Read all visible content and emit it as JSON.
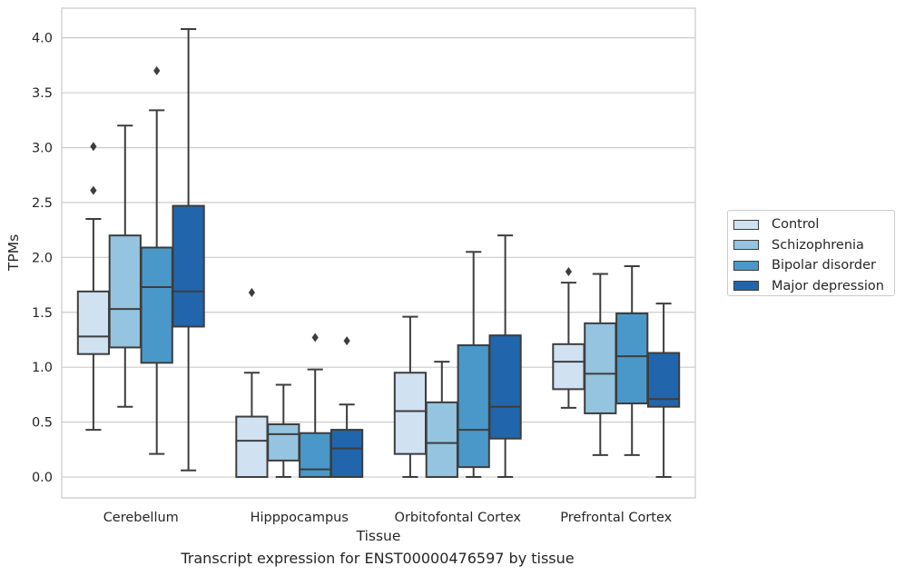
{
  "caption": "Transcript expression for ENST00000476597 by tissue",
  "chart_data": {
    "type": "boxplot",
    "xlabel": "Tissue",
    "ylabel": "TPMs",
    "ylim": [
      -0.19,
      4.27
    ],
    "yticks": [
      "0.0",
      "0.5",
      "1.0",
      "1.5",
      "2.0",
      "2.5",
      "3.0",
      "3.5",
      "4.0"
    ],
    "grid": "horizontal",
    "legend_position": "right",
    "categories": [
      "Cerebellum",
      "Hipppocampus",
      "Orbitofontal Cortex",
      "Prefrontal Cortex"
    ],
    "series": [
      {
        "name": "Control",
        "color": "#d0e1f2",
        "boxes": [
          {
            "whislo": 0.43,
            "q1": 1.12,
            "med": 1.28,
            "q3": 1.69,
            "whishi": 2.35,
            "fliers": [
              2.61,
              3.01
            ]
          },
          {
            "whislo": 0.0,
            "q1": 0.0,
            "med": 0.33,
            "q3": 0.55,
            "whishi": 0.95,
            "fliers": [
              1.68
            ]
          },
          {
            "whislo": 0.0,
            "q1": 0.21,
            "med": 0.6,
            "q3": 0.95,
            "whishi": 1.46,
            "fliers": []
          },
          {
            "whislo": 0.63,
            "q1": 0.8,
            "med": 1.05,
            "q3": 1.21,
            "whishi": 1.77,
            "fliers": [
              1.87
            ]
          }
        ]
      },
      {
        "name": "Schizophrenia",
        "color": "#94c4df",
        "boxes": [
          {
            "whislo": 0.64,
            "q1": 1.18,
            "med": 1.53,
            "q3": 2.2,
            "whishi": 3.2,
            "fliers": []
          },
          {
            "whislo": 0.0,
            "q1": 0.15,
            "med": 0.39,
            "q3": 0.48,
            "whishi": 0.84,
            "fliers": []
          },
          {
            "whislo": 0.0,
            "q1": 0.0,
            "med": 0.31,
            "q3": 0.68,
            "whishi": 1.05,
            "fliers": []
          },
          {
            "whislo": 0.2,
            "q1": 0.58,
            "med": 0.94,
            "q3": 1.4,
            "whishi": 1.85,
            "fliers": []
          }
        ]
      },
      {
        "name": "Bipolar disorder",
        "color": "#4a98c9",
        "boxes": [
          {
            "whislo": 0.21,
            "q1": 1.04,
            "med": 1.73,
            "q3": 2.09,
            "whishi": 3.34,
            "fliers": [
              3.7
            ]
          },
          {
            "whislo": 0.0,
            "q1": 0.0,
            "med": 0.07,
            "q3": 0.4,
            "whishi": 0.98,
            "fliers": [
              1.27
            ]
          },
          {
            "whislo": 0.0,
            "q1": 0.09,
            "med": 0.43,
            "q3": 1.2,
            "whishi": 2.05,
            "fliers": []
          },
          {
            "whislo": 0.2,
            "q1": 0.67,
            "med": 1.1,
            "q3": 1.49,
            "whishi": 1.92,
            "fliers": []
          }
        ]
      },
      {
        "name": "Major depression",
        "color": "#2166ac",
        "boxes": [
          {
            "whislo": 0.06,
            "q1": 1.37,
            "med": 1.69,
            "q3": 2.47,
            "whishi": 4.08,
            "fliers": []
          },
          {
            "whislo": 0.0,
            "q1": 0.0,
            "med": 0.26,
            "q3": 0.43,
            "whishi": 0.66,
            "fliers": [
              1.24
            ]
          },
          {
            "whislo": 0.0,
            "q1": 0.35,
            "med": 0.64,
            "q3": 1.29,
            "whishi": 2.2,
            "fliers": []
          },
          {
            "whislo": 0.0,
            "q1": 0.64,
            "med": 0.71,
            "q3": 1.13,
            "whishi": 1.58,
            "fliers": []
          }
        ]
      }
    ]
  }
}
